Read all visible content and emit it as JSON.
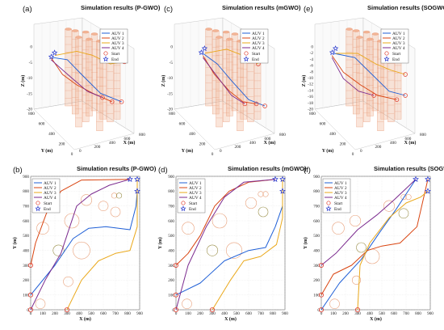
{
  "figure": {
    "panels": [
      {
        "label": "(a)",
        "title": "Simulation results (P-GWO)"
      },
      {
        "label": "(c)",
        "title": "Simulation results (mGWO)"
      },
      {
        "label": "(e)",
        "title": "Simulation results (SOGWO)"
      },
      {
        "label": "(b)",
        "title": "Simulation results (P-GWO)"
      },
      {
        "label": "(d)",
        "title": "Simulation results (mGWO)"
      },
      {
        "label": "(f)",
        "title": "Simulation results (SOGWO)"
      }
    ],
    "legend": [
      "AUV 1",
      "AUV 2",
      "AUV 3",
      "AUV 4",
      "Start",
      "End"
    ]
  },
  "colors": {
    "AUV 1": "#1f5fd6",
    "AUV 2": "#d94410",
    "AUV 3": "#eaa81a",
    "AUV 4": "#7b2a8e",
    "start": "#e0392a",
    "end": "#2233cc",
    "obstacle": "#f2b495",
    "obstacle2d_a": "#e8a07a",
    "obstacle2d_b": "#9a8f4a"
  },
  "chart_data": [
    {
      "type": "line3d",
      "title": "Simulation results (P-GWO)",
      "xlabel": "X (m)",
      "ylabel": "Y (m)",
      "zlabel": "Z (m)",
      "zticks": [
        "0",
        "-5",
        "-10",
        "-15",
        "-20"
      ],
      "yticks": [
        "800",
        "600",
        "400",
        "200",
        "0"
      ],
      "xticks": [
        "0",
        "200",
        "400",
        "600",
        "800"
      ],
      "series": [
        "AUV 1",
        "AUV 2",
        "AUV 3",
        "AUV 4"
      ]
    },
    {
      "type": "line3d",
      "title": "Simulation results (mGWO)",
      "xlabel": "X (m)",
      "ylabel": "Y (m)",
      "zlabel": "Z (m)",
      "zticks": [
        "0",
        "-5",
        "-10",
        "-15",
        "-20"
      ],
      "yticks": [
        "800",
        "600",
        "400",
        "200",
        "0"
      ],
      "xticks": [
        "0",
        "200",
        "400",
        "600",
        "800"
      ],
      "series": [
        "AUV 1",
        "AUV 2",
        "AUV 3",
        "AUV 4"
      ]
    },
    {
      "type": "line3d",
      "title": "Simulation results (SOGWO)",
      "xlabel": "X (m)",
      "ylabel": "Y (m)",
      "zlabel": "Z (m)",
      "zticks": [
        "0",
        "-2",
        "-4",
        "-6",
        "-8",
        "-10",
        "-12",
        "-14",
        "-16",
        "-18",
        "-20"
      ],
      "yticks": [
        "800",
        "600",
        "400",
        "200",
        "0"
      ],
      "xticks": [
        "0",
        "200",
        "400",
        "600",
        "800"
      ],
      "series": [
        "AUV 1",
        "AUV 2",
        "AUV 3",
        "AUV 4"
      ]
    },
    {
      "type": "line",
      "title": "Simulation results (P-GWO)",
      "xlabel": "X (m)",
      "ylabel": "Y (m)",
      "xlim": [
        0,
        900
      ],
      "ylim": [
        0,
        900
      ],
      "xticks": [
        0,
        100,
        200,
        300,
        400,
        500,
        600,
        700,
        800,
        900
      ],
      "yticks": [
        0,
        100,
        200,
        300,
        400,
        500,
        600,
        700,
        800,
        900
      ],
      "grid": true,
      "starts": [
        [
          0,
          0
        ],
        [
          0,
          100
        ],
        [
          0,
          300
        ],
        [
          300,
          0
        ]
      ],
      "ends": [
        [
          820,
          880
        ],
        [
          880,
          880
        ],
        [
          880,
          800
        ]
      ],
      "obstacles": [
        {
          "x": 100,
          "y": 550,
          "r": 50
        },
        {
          "x": 420,
          "y": 400,
          "r": 70
        },
        {
          "x": 340,
          "y": 600,
          "r": 60
        },
        {
          "x": 230,
          "y": 400,
          "r": 45
        },
        {
          "x": 460,
          "y": 740,
          "r": 45
        },
        {
          "x": 600,
          "y": 700,
          "r": 40
        },
        {
          "x": 690,
          "y": 770,
          "r": 22
        },
        {
          "x": 730,
          "y": 770,
          "r": 22
        },
        {
          "x": 700,
          "y": 660,
          "r": 40
        },
        {
          "x": 310,
          "y": 190,
          "r": 40
        },
        {
          "x": 80,
          "y": 40,
          "r": 40
        }
      ],
      "series": [
        {
          "name": "AUV 1",
          "points": [
            [
              0,
              100
            ],
            [
              200,
              300
            ],
            [
              350,
              480
            ],
            [
              480,
              550
            ],
            [
              620,
              560
            ],
            [
              820,
              540
            ],
            [
              870,
              700
            ],
            [
              880,
              800
            ]
          ]
        },
        {
          "name": "AUV 2",
          "points": [
            [
              0,
              300
            ],
            [
              40,
              450
            ],
            [
              130,
              650
            ],
            [
              250,
              800
            ],
            [
              420,
              875
            ],
            [
              820,
              880
            ]
          ]
        },
        {
          "name": "AUV 3",
          "points": [
            [
              300,
              0
            ],
            [
              420,
              200
            ],
            [
              560,
              330
            ],
            [
              700,
              380
            ],
            [
              820,
              400
            ],
            [
              880,
              560
            ],
            [
              880,
              880
            ]
          ]
        },
        {
          "name": "AUV 4",
          "points": [
            [
              0,
              0
            ],
            [
              120,
              200
            ],
            [
              250,
              380
            ],
            [
              380,
              700
            ],
            [
              500,
              780
            ],
            [
              650,
              840
            ],
            [
              820,
              880
            ]
          ]
        }
      ]
    },
    {
      "type": "line",
      "title": "Simulation results (mGWO)",
      "xlabel": "X (m)",
      "ylabel": "Y (m)",
      "xlim": [
        0,
        900
      ],
      "ylim": [
        0,
        900
      ],
      "xticks": [
        0,
        100,
        200,
        300,
        400,
        500,
        600,
        700,
        800,
        900
      ],
      "yticks": [
        0,
        100,
        200,
        300,
        400,
        500,
        600,
        700,
        800,
        900
      ],
      "grid": true,
      "starts": [
        [
          0,
          0
        ],
        [
          0,
          100
        ],
        [
          0,
          300
        ],
        [
          300,
          0
        ]
      ],
      "ends": [
        [
          820,
          880
        ],
        [
          880,
          880
        ],
        [
          880,
          800
        ]
      ],
      "obstacles": [
        {
          "x": 100,
          "y": 550,
          "r": 50
        },
        {
          "x": 480,
          "y": 400,
          "r": 65
        },
        {
          "x": 360,
          "y": 600,
          "r": 60
        },
        {
          "x": 300,
          "y": 400,
          "r": 45
        },
        {
          "x": 620,
          "y": 720,
          "r": 45
        },
        {
          "x": 700,
          "y": 780,
          "r": 22
        },
        {
          "x": 740,
          "y": 780,
          "r": 22
        },
        {
          "x": 720,
          "y": 660,
          "r": 40
        },
        {
          "x": 90,
          "y": 40,
          "r": 40
        }
      ],
      "series": [
        {
          "name": "AUV 1",
          "points": [
            [
              0,
              100
            ],
            [
              200,
              180
            ],
            [
              400,
              330
            ],
            [
              600,
              400
            ],
            [
              740,
              420
            ],
            [
              820,
              560
            ],
            [
              880,
              700
            ],
            [
              880,
              800
            ]
          ]
        },
        {
          "name": "AUV 2",
          "points": [
            [
              0,
              300
            ],
            [
              100,
              380
            ],
            [
              200,
              500
            ],
            [
              320,
              700
            ],
            [
              440,
              800
            ],
            [
              600,
              860
            ],
            [
              820,
              880
            ]
          ]
        },
        {
          "name": "AUV 3",
          "points": [
            [
              300,
              0
            ],
            [
              450,
              200
            ],
            [
              560,
              330
            ],
            [
              700,
              360
            ],
            [
              830,
              440
            ],
            [
              880,
              620
            ],
            [
              880,
              880
            ]
          ]
        },
        {
          "name": "AUV 4",
          "points": [
            [
              0,
              0
            ],
            [
              100,
              300
            ],
            [
              250,
              560
            ],
            [
              400,
              760
            ],
            [
              560,
              860
            ],
            [
              820,
              880
            ]
          ]
        }
      ]
    },
    {
      "type": "line",
      "title": "Simulation results (SOGWO)",
      "xlabel": "X (m)",
      "ylabel": "Y (m)",
      "xlim": [
        0,
        900
      ],
      "ylim": [
        0,
        900
      ],
      "xticks": [
        0,
        100,
        200,
        300,
        400,
        500,
        600,
        700,
        800,
        900
      ],
      "yticks": [
        0,
        100,
        200,
        300,
        400,
        500,
        600,
        700,
        800,
        900
      ],
      "grid": true,
      "starts": [
        [
          0,
          0
        ],
        [
          0,
          100
        ],
        [
          0,
          300
        ],
        [
          300,
          0
        ]
      ],
      "ends": [
        [
          780,
          880
        ],
        [
          880,
          880
        ],
        [
          880,
          800
        ]
      ],
      "obstacles": [
        {
          "x": 140,
          "y": 550,
          "r": 50
        },
        {
          "x": 420,
          "y": 360,
          "r": 60
        },
        {
          "x": 280,
          "y": 600,
          "r": 45
        },
        {
          "x": 330,
          "y": 420,
          "r": 40
        },
        {
          "x": 560,
          "y": 700,
          "r": 45
        },
        {
          "x": 680,
          "y": 760,
          "r": 22
        },
        {
          "x": 720,
          "y": 760,
          "r": 22
        },
        {
          "x": 680,
          "y": 650,
          "r": 40
        },
        {
          "x": 290,
          "y": 200,
          "r": 35
        },
        {
          "x": 110,
          "y": 40,
          "r": 40
        }
      ],
      "series": [
        {
          "name": "AUV 1",
          "points": [
            [
              0,
              0
            ],
            [
              150,
              180
            ],
            [
              330,
              340
            ],
            [
              480,
              520
            ],
            [
              620,
              680
            ],
            [
              780,
              880
            ]
          ]
        },
        {
          "name": "AUV 2",
          "points": [
            [
              0,
              100
            ],
            [
              100,
              240
            ],
            [
              250,
              300
            ],
            [
              380,
              400
            ],
            [
              500,
              430
            ],
            [
              650,
              450
            ],
            [
              790,
              560
            ],
            [
              880,
              880
            ]
          ]
        },
        {
          "name": "AUV 3",
          "points": [
            [
              300,
              0
            ],
            [
              320,
              300
            ],
            [
              400,
              450
            ],
            [
              560,
              620
            ],
            [
              700,
              720
            ],
            [
              820,
              760
            ],
            [
              880,
              800
            ]
          ]
        },
        {
          "name": "AUV 4",
          "points": [
            [
              0,
              300
            ],
            [
              120,
              380
            ],
            [
              300,
              540
            ],
            [
              460,
              640
            ],
            [
              600,
              740
            ],
            [
              780,
              880
            ]
          ]
        }
      ]
    }
  ]
}
